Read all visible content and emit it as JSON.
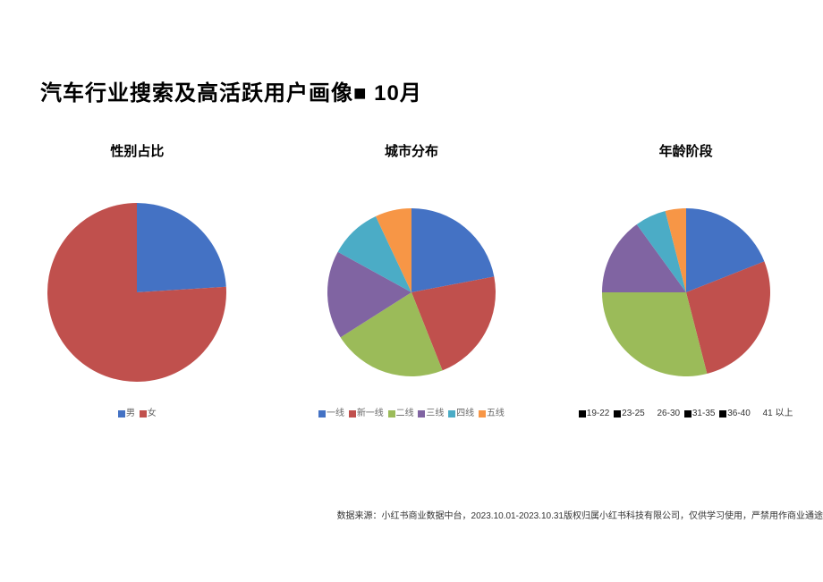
{
  "page": {
    "title": "汽车行业搜索及高活跃用户画像■ 10月",
    "title_fontsize": 24,
    "title_color": "#000000",
    "background_color": "#ffffff",
    "footer": "数据来源：小红书商业数据中台，2023.10.01-2023.10.31版权归属小红书科技有限公司，仅供学习使用，严禁用作商业通途",
    "footer_fontsize": 10
  },
  "charts": {
    "gender": {
      "type": "pie",
      "title": "性别占比",
      "title_fontsize": 15,
      "radius": 100,
      "start_angle_deg": -90,
      "slices": [
        {
          "label": "男",
          "value": 24,
          "color": "#4472c4"
        },
        {
          "label": "女",
          "value": 76,
          "color": "#c0504d"
        }
      ],
      "legend_swatch_colors": [
        "#4472c4",
        "#c0504d"
      ],
      "legend_text_color": "#666666"
    },
    "city": {
      "type": "pie",
      "title": "城市分布",
      "title_fontsize": 15,
      "radius": 94,
      "start_angle_deg": -90,
      "slices": [
        {
          "label": "一线",
          "value": 22,
          "color": "#4472c4"
        },
        {
          "label": "新一线",
          "value": 22,
          "color": "#c0504d"
        },
        {
          "label": "二线",
          "value": 22,
          "color": "#9bbb59"
        },
        {
          "label": "三线",
          "value": 17,
          "color": "#8064a2"
        },
        {
          "label": "四线",
          "value": 10,
          "color": "#4bacc6"
        },
        {
          "label": "五线",
          "value": 7,
          "color": "#f79646"
        }
      ],
      "legend_swatch_colors": [
        "#4472c4",
        "#c0504d",
        "#9bbb59",
        "#8064a2",
        "#4bacc6",
        "#f79646"
      ],
      "legend_text_color": "#666666"
    },
    "age": {
      "type": "pie",
      "title": "年龄阶段",
      "title_fontsize": 15,
      "radius": 94,
      "start_angle_deg": -90,
      "slices": [
        {
          "label": "19-22",
          "value": 19,
          "color": "#4472c4"
        },
        {
          "label": "23-25",
          "value": 27,
          "color": "#c0504d"
        },
        {
          "label": "26-30",
          "value": 29,
          "color": "#9bbb59"
        },
        {
          "label": "31-35",
          "value": 15,
          "color": "#8064a2"
        },
        {
          "label": "36-40",
          "value": 6,
          "color": "#4bacc6"
        },
        {
          "label": "41 以上",
          "value": 4,
          "color": "#f79646"
        }
      ],
      "legend_swatch_colors": [
        "#000000",
        "#000000",
        "#ffffff",
        "#000000",
        "#000000",
        "#ffffff"
      ],
      "legend_text_color": "#333333"
    }
  }
}
